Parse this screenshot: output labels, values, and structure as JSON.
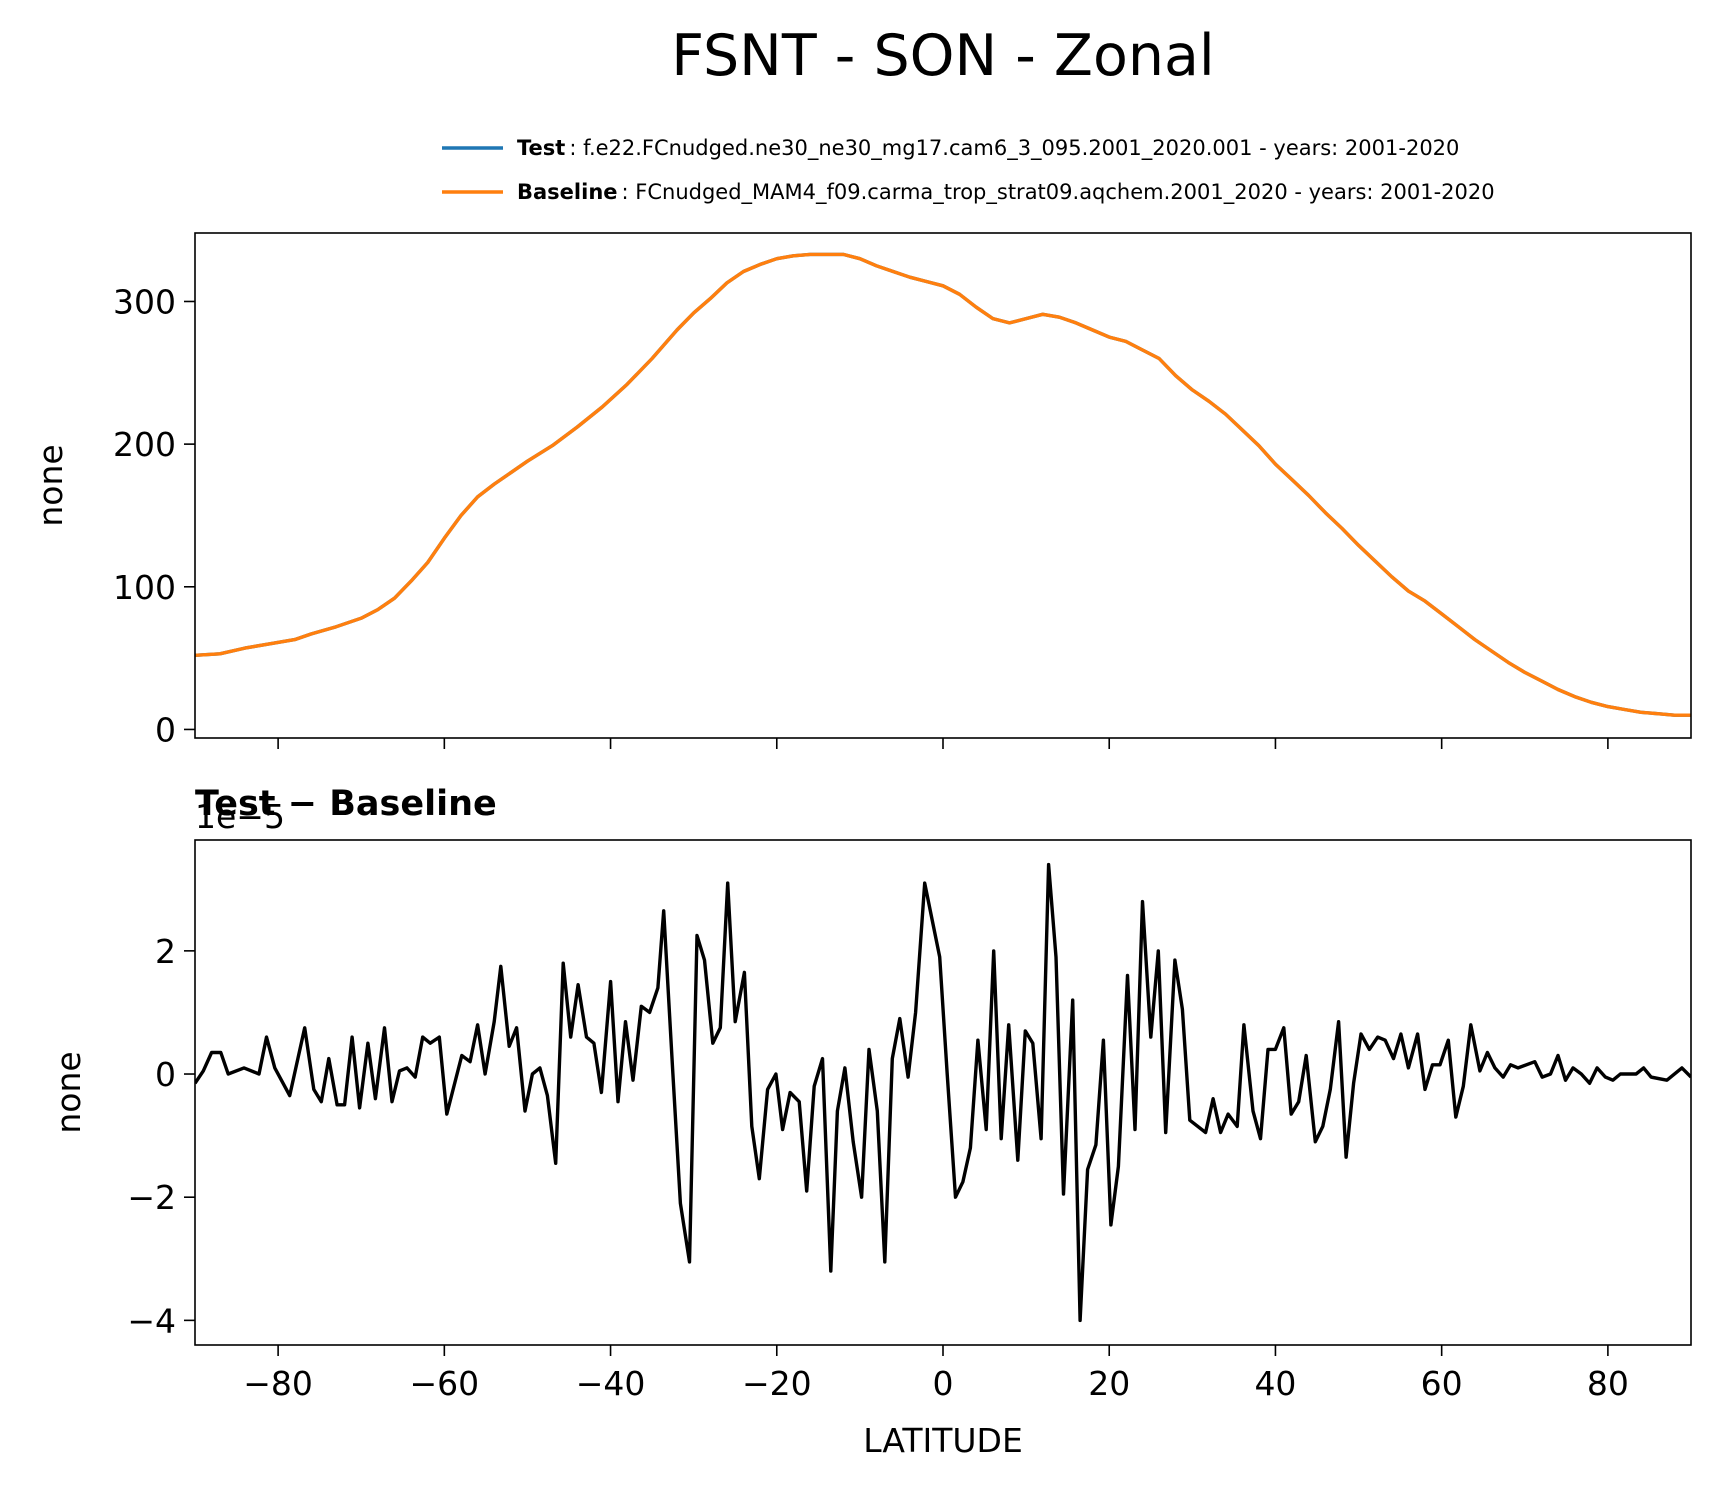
{
  "title": "FSNT - SON - Zonal",
  "chart_data": [
    {
      "type": "line",
      "ylabel": "none",
      "x": [
        -90,
        -87,
        -84,
        -81,
        -78,
        -76,
        -73,
        -70,
        -68,
        -66,
        -64,
        -62,
        -60,
        -58,
        -56,
        -54,
        -52,
        -50,
        -47,
        -44,
        -41,
        -38,
        -35,
        -32,
        -30,
        -28,
        -26,
        -24,
        -22,
        -20,
        -18,
        -16,
        -14,
        -12,
        -10,
        -8,
        -6,
        -4,
        -2,
        0,
        2,
        4,
        6,
        8,
        10,
        12,
        14,
        16,
        18,
        20,
        22,
        24,
        26,
        28,
        30,
        32,
        34,
        36,
        38,
        40,
        42,
        44,
        46,
        48,
        50,
        52,
        54,
        56,
        58,
        60,
        62,
        64,
        66,
        68,
        70,
        72,
        74,
        76,
        78,
        80,
        82,
        84,
        86,
        88,
        90
      ],
      "series": [
        {
          "name": "Test",
          "description": ": f.e22.FCnudged.ne30_ne30_mg17.cam6_3_095.2001_2020.001 - years: 2001-2020",
          "color": "#1f77b4",
          "values": [
            52,
            53,
            57,
            60,
            63,
            67,
            72,
            78,
            84,
            92,
            104,
            117,
            134,
            150,
            163,
            172,
            180,
            188,
            199,
            212,
            226,
            242,
            260,
            280,
            292,
            302,
            313,
            321,
            326,
            330,
            332,
            333,
            333,
            333,
            330,
            325,
            321,
            317,
            314,
            311,
            305,
            296,
            288,
            285,
            288,
            291,
            289,
            285,
            280,
            275,
            272,
            266,
            260,
            248,
            238,
            230,
            221,
            210,
            199,
            186,
            175,
            164,
            152,
            141,
            129,
            118,
            107,
            97,
            90,
            81,
            72,
            63,
            55,
            47,
            40,
            34,
            28,
            23,
            19,
            16,
            14,
            12,
            11,
            10,
            10
          ]
        },
        {
          "name": "Baseline",
          "description": ": FCnudged_MAM4_f09.carma_trop_strat09.aqchem.2001_2020 - years: 2001-2020",
          "color": "#ff7f0e",
          "values": [
            52,
            53,
            57,
            60,
            63,
            67,
            72,
            78,
            84,
            92,
            104,
            117,
            134,
            150,
            163,
            172,
            180,
            188,
            199,
            212,
            226,
            242,
            260,
            280,
            292,
            302,
            313,
            321,
            326,
            330,
            332,
            333,
            333,
            333,
            330,
            325,
            321,
            317,
            314,
            311,
            305,
            296,
            288,
            285,
            288,
            291,
            289,
            285,
            280,
            275,
            272,
            266,
            260,
            248,
            238,
            230,
            221,
            210,
            199,
            186,
            175,
            164,
            152,
            141,
            129,
            118,
            107,
            97,
            90,
            81,
            72,
            63,
            55,
            47,
            40,
            34,
            28,
            23,
            19,
            16,
            14,
            12,
            11,
            10,
            10
          ]
        }
      ],
      "xlim": [
        -90,
        90
      ],
      "xticks": [
        -80,
        -60,
        -40,
        -20,
        0,
        20,
        40,
        60,
        80
      ],
      "ylim": [
        -6,
        348
      ],
      "yticks": [
        0,
        100,
        200,
        300
      ]
    },
    {
      "type": "line",
      "title": "Test − Baseline",
      "ylabel": "none",
      "xlabel": "LATITUDE",
      "offset_label": "1e−5",
      "color": "#000000",
      "x": [
        -90,
        -89,
        -88,
        -86.9,
        -86,
        -84.1,
        -82.3,
        -81.4,
        -80.4,
        -78.6,
        -76.8,
        -75.7,
        -74.8,
        -73.9,
        -72.9,
        -72,
        -71.1,
        -70.2,
        -69.2,
        -68.3,
        -67.2,
        -66.3,
        -65.4,
        -64.5,
        -63.5,
        -62.6,
        -61.7,
        -60.6,
        -59.7,
        -57.9,
        -56.9,
        -56,
        -55.1,
        -54,
        -53.2,
        -52.2,
        -51.3,
        -50.3,
        -49.4,
        -48.5,
        -47.6,
        -46.6,
        -45.7,
        -44.8,
        -43.9,
        -42.9,
        -42,
        -41.1,
        -40,
        -39.1,
        -38.2,
        -37.3,
        -36.3,
        -35.3,
        -34.3,
        -33.6,
        -32.5,
        -31.6,
        -30.5,
        -29.6,
        -28.7,
        -27.7,
        -26.8,
        -25.9,
        -25,
        -23.9,
        -23,
        -22.1,
        -21.1,
        -20.1,
        -19.3,
        -18.4,
        -17.3,
        -16.4,
        -15.5,
        -14.5,
        -13.5,
        -12.7,
        -11.8,
        -10.8,
        -9.8,
        -8.9,
        -7.9,
        -7,
        -6.1,
        -5.2,
        -4.2,
        -3.3,
        -2.2,
        -1.3,
        -0.4,
        0.5,
        1.5,
        2.4,
        3.3,
        4.2,
        5.2,
        6.1,
        7,
        7.9,
        9,
        9.9,
        10.8,
        11.8,
        12.7,
        13.6,
        14.5,
        15.6,
        16.5,
        17.4,
        18.4,
        19.3,
        20.2,
        21.1,
        22.2,
        23.1,
        24,
        25,
        25.9,
        26.8,
        27.9,
        28.8,
        29.7,
        31.6,
        32.5,
        33.4,
        34.3,
        35.4,
        36.2,
        37.3,
        38.2,
        39.1,
        40,
        41,
        41.9,
        42.8,
        43.7,
        44.8,
        45.7,
        46.6,
        47.6,
        48.5,
        49.4,
        50.3,
        51.3,
        52.3,
        53.2,
        54.2,
        55.1,
        56,
        57.1,
        58,
        58.9,
        59.8,
        60.8,
        61.7,
        62.6,
        63.5,
        64.6,
        65.5,
        66.4,
        67.4,
        68.3,
        69.2,
        71.2,
        72.1,
        73.1,
        74,
        74.9,
        75.8,
        76.8,
        77.8,
        78.7,
        79.7,
        80.6,
        81.5,
        83.4,
        84.3,
        85.2,
        87.1,
        88.9,
        90
      ],
      "values": [
        -0.15,
        0.05,
        0.35,
        0.35,
        0,
        0.1,
        0,
        0.6,
        0.1,
        -0.35,
        0.75,
        -0.25,
        -0.45,
        0.25,
        -0.5,
        -0.5,
        0.6,
        -0.55,
        0.5,
        -0.4,
        0.75,
        -0.45,
        0.05,
        0.1,
        -0.05,
        0.6,
        0.5,
        0.6,
        -0.65,
        0.3,
        0.2,
        0.8,
        0,
        0.85,
        1.75,
        0.45,
        0.75,
        -0.6,
        0,
        0.1,
        -0.35,
        -1.45,
        1.8,
        0.6,
        1.45,
        0.6,
        0.5,
        -0.3,
        1.5,
        -0.45,
        0.85,
        -0.1,
        1.1,
        1,
        1.4,
        2.65,
        0,
        -2.1,
        -3.05,
        2.25,
        1.85,
        0.5,
        0.75,
        3.1,
        0.85,
        1.65,
        -0.85,
        -1.7,
        -0.25,
        0,
        -0.9,
        -0.3,
        -0.45,
        -1.9,
        -0.2,
        0.25,
        -3.2,
        -0.6,
        0.1,
        -1.1,
        -2,
        0.4,
        -0.6,
        -3.05,
        0.25,
        0.9,
        -0.05,
        1,
        3.1,
        2.5,
        1.9,
        0,
        -2,
        -1.75,
        -1.2,
        0.55,
        -0.9,
        2,
        -1.05,
        0.8,
        -1.4,
        0.7,
        0.5,
        -1.05,
        3.4,
        1.9,
        -1.95,
        1.2,
        -4,
        -1.55,
        -1.15,
        0.55,
        -2.45,
        -1.5,
        1.6,
        -0.9,
        2.8,
        0.6,
        2,
        -0.95,
        1.85,
        1.05,
        -0.75,
        -0.95,
        -0.4,
        -0.95,
        -0.65,
        -0.85,
        0.8,
        -0.6,
        -1.05,
        0.4,
        0.4,
        0.75,
        -0.65,
        -0.45,
        0.3,
        -1.1,
        -0.85,
        -0.25,
        0.85,
        -1.35,
        -0.15,
        0.65,
        0.4,
        0.6,
        0.55,
        0.25,
        0.65,
        0.1,
        0.65,
        -0.25,
        0.15,
        0.15,
        0.55,
        -0.7,
        -0.2,
        0.8,
        0.05,
        0.35,
        0.1,
        -0.05,
        0.15,
        0.1,
        0.2,
        -0.05,
        0,
        0.3,
        -0.1,
        0.1,
        0,
        -0.15,
        0.1,
        -0.05,
        -0.1,
        0,
        0,
        0.1,
        -0.05,
        -0.1,
        0.1,
        -0.05
      ],
      "xlim": [
        -90,
        90
      ],
      "xticks": [
        {
          "value": -80,
          "label": "−80"
        },
        {
          "value": -60,
          "label": "−60"
        },
        {
          "value": -40,
          "label": "−40"
        },
        {
          "value": -20,
          "label": "−20"
        },
        0,
        20,
        40,
        60,
        80
      ],
      "ylim": [
        -4.4,
        3.8
      ],
      "yticks": [
        {
          "value": -4,
          "label": "−4"
        },
        {
          "value": -2,
          "label": "−2"
        },
        0,
        2
      ]
    }
  ]
}
